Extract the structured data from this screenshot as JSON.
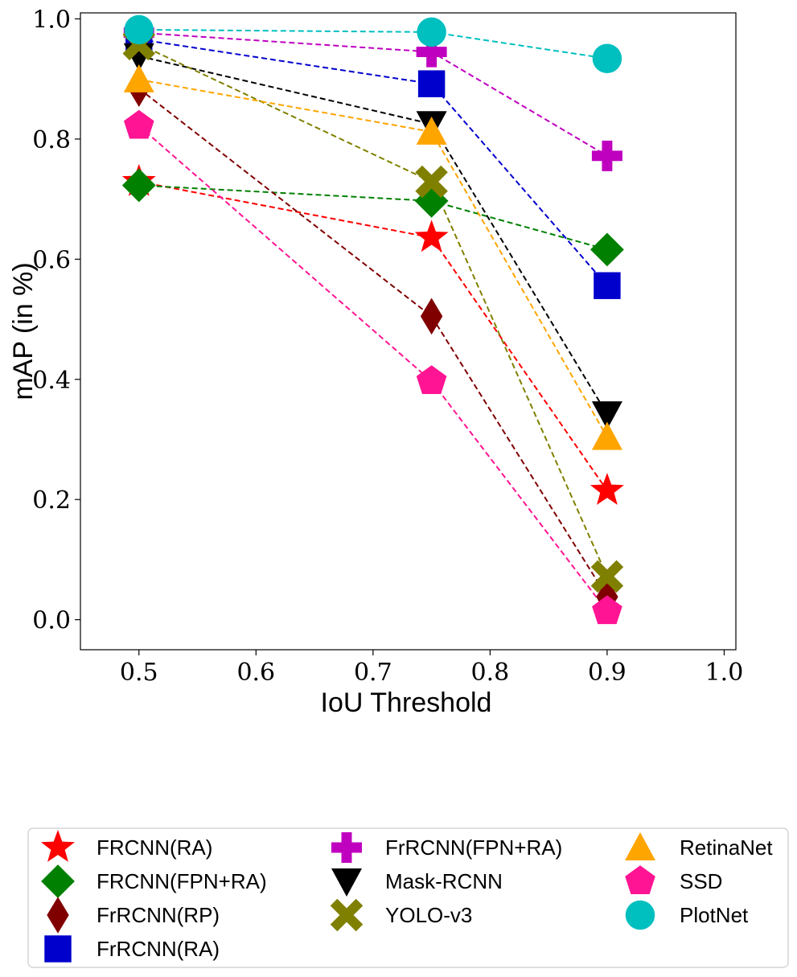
{
  "chart_data": {
    "type": "line",
    "title": "",
    "xlabel": "IoU Threshold",
    "ylabel": "mAP (in %)",
    "xlim": [
      0.45,
      1.01
    ],
    "ylim": [
      -0.05,
      1.01
    ],
    "xticks": [
      "0.5",
      "0.6",
      "0.7",
      "0.8",
      "0.9",
      "1.0"
    ],
    "yticks": [
      "0.0",
      "0.2",
      "0.4",
      "0.6",
      "0.8",
      "1.0"
    ],
    "x": [
      0.5,
      0.75,
      0.9
    ],
    "grid": false,
    "legend_position": "bottom",
    "series": [
      {
        "name": "FRCNN(RA)",
        "values": [
          0.729,
          0.636,
          0.215
        ],
        "color": "#ff0000",
        "marker": "star"
      },
      {
        "name": "FRCNN(FPN+RA)",
        "values": [
          0.723,
          0.697,
          0.616
        ],
        "color": "#008000",
        "marker": "diamond"
      },
      {
        "name": "FrRCNN(RP)",
        "values": [
          0.884,
          0.505,
          0.038
        ],
        "color": "#800000",
        "marker": "thin_diamond"
      },
      {
        "name": "FrRCNN(RA)",
        "values": [
          0.966,
          0.892,
          0.556
        ],
        "color": "#0000cd",
        "marker": "square"
      },
      {
        "name": "FrRCNN(FPN+RA)",
        "values": [
          0.977,
          0.945,
          0.772
        ],
        "color": "#bf00bf",
        "marker": "plus"
      },
      {
        "name": "Mask-RCNN",
        "values": [
          0.938,
          0.825,
          0.342
        ],
        "color": "#000000",
        "marker": "triangle_down"
      },
      {
        "name": "YOLO-v3",
        "values": [
          0.958,
          0.729,
          0.072
        ],
        "color": "#808000",
        "marker": "x"
      },
      {
        "name": "RetinaNet",
        "values": [
          0.899,
          0.812,
          0.304
        ],
        "color": "#ffa500",
        "marker": "triangle_up"
      },
      {
        "name": "SSD",
        "values": [
          0.822,
          0.397,
          0.014
        ],
        "color": "#ff1493",
        "marker": "pentagon"
      },
      {
        "name": "PlotNet",
        "values": [
          0.982,
          0.978,
          0.934
        ],
        "color": "#00bfbf",
        "marker": "circle"
      }
    ]
  }
}
